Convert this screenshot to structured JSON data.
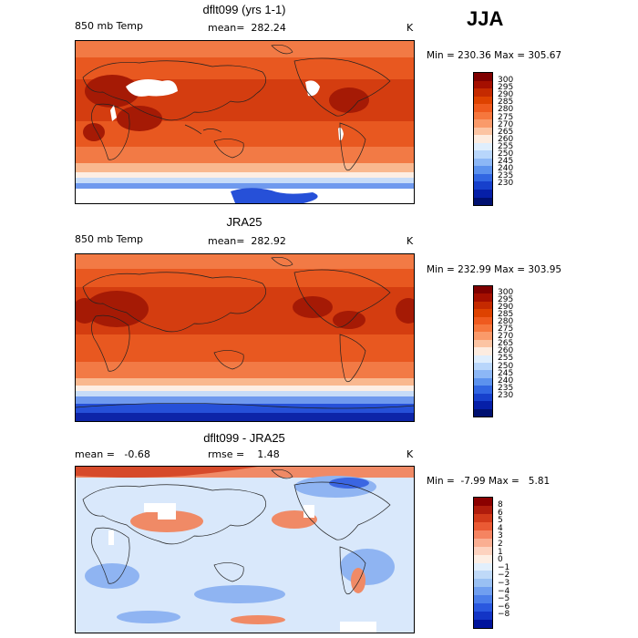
{
  "season": "JJA",
  "panels": [
    {
      "title": "dflt099 (yrs 1-1)",
      "left_label": "850 mb Temp",
      "mid_label": "mean=  282.24",
      "unit": "K",
      "stats": "Min = 230.36 Max = 305.67",
      "colorbar": {
        "colors": [
          "#7f0000",
          "#a50f00",
          "#c52a00",
          "#de4200",
          "#ef5a1e",
          "#f6773d",
          "#fa9a6a",
          "#fcc4a3",
          "#fdece0",
          "#dfeefd",
          "#b8d6fb",
          "#8cb7f6",
          "#5c92ee",
          "#3166e2",
          "#1740cc",
          "#061fa8",
          "#001070"
        ],
        "labels": [
          "300",
          "295",
          "290",
          "285",
          "280",
          "275",
          "270",
          "265",
          "260",
          "255",
          "250",
          "245",
          "240",
          "235",
          "230"
        ]
      }
    },
    {
      "title": "JRA25",
      "left_label": "850 mb Temp",
      "mid_label": "mean=  282.92",
      "unit": "K",
      "stats": "Min = 232.99 Max = 303.95",
      "colorbar": {
        "colors": [
          "#7f0000",
          "#a50f00",
          "#c52a00",
          "#de4200",
          "#ef5a1e",
          "#f6773d",
          "#fa9a6a",
          "#fcc4a3",
          "#fdece0",
          "#dfeefd",
          "#b8d6fb",
          "#8cb7f6",
          "#5c92ee",
          "#3166e2",
          "#1740cc",
          "#061fa8",
          "#001070"
        ],
        "labels": [
          "300",
          "295",
          "290",
          "285",
          "280",
          "275",
          "270",
          "265",
          "260",
          "255",
          "250",
          "245",
          "240",
          "235",
          "230"
        ]
      }
    },
    {
      "title": "dflt099 - JRA25",
      "left_label": "mean =   -0.68",
      "mid_label": "rmse =    1.48",
      "unit": "K",
      "stats": "Min =  -7.99 Max =   5.81",
      "colorbar": {
        "colors": [
          "#8b0000",
          "#b01c0c",
          "#d23a1a",
          "#ea5a34",
          "#f58461",
          "#faae92",
          "#fdd2bf",
          "#fdeee4",
          "#e2effc",
          "#bfd9f8",
          "#99c0f3",
          "#709ff0",
          "#4b7eea",
          "#2a58df",
          "#1335c6",
          "#00139c"
        ],
        "labels": [
          "8",
          "6",
          "5",
          "4",
          "3",
          "2",
          "1",
          "0",
          "−1",
          "−2",
          "−3",
          "−4",
          "−5",
          "−6",
          "−8"
        ]
      }
    }
  ],
  "colors": {
    "t_hot": "#a51a05",
    "t_warm": "#d43d10",
    "t_mid": "#e85820",
    "t_cool": "#f27a45",
    "t_pale": "#f9b88f",
    "t_cream": "#fdeee4",
    "t_lightblue": "#c7dcf8",
    "t_blue": "#6f99ee",
    "t_deep": "#2650d8",
    "t_navy": "#0d24a8",
    "d_pale": "#d9e8fb",
    "d_blue": "#8fb4f2",
    "d_deep": "#3b66e2",
    "d_red": "#f08a66",
    "d_darkred": "#d64a2a"
  }
}
